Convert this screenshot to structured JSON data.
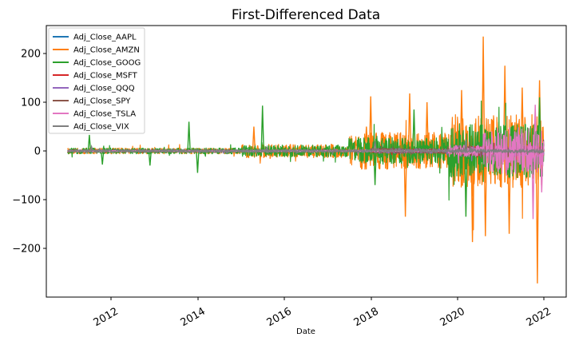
{
  "chart_data": {
    "type": "line",
    "title": "First-Differenced Data",
    "xlabel": "Date",
    "ylabel": "",
    "x_ticks": [
      "2012",
      "2014",
      "2016",
      "2018",
      "2020",
      "2022"
    ],
    "y_ticks": [
      "−200",
      "−100",
      "0",
      "100",
      "200"
    ],
    "x_range": [
      2011.0,
      2022.0
    ],
    "ylim": [
      -300,
      260
    ],
    "grid": false,
    "legend_position": "upper-left",
    "series": [
      {
        "name": "Adj_Close_AAPL",
        "color": "#1f77b4",
        "segments": [
          {
            "from": 2011.0,
            "to": 2018.0,
            "amp": 2
          },
          {
            "from": 2018.0,
            "to": 2020.0,
            "amp": 4
          },
          {
            "from": 2020.0,
            "to": 2022.0,
            "amp": 9
          }
        ]
      },
      {
        "name": "Adj_Close_AMZN",
        "color": "#ff7f0e",
        "segments": [
          {
            "from": 2011.0,
            "to": 2015.0,
            "amp": 6
          },
          {
            "from": 2015.0,
            "to": 2017.5,
            "amp": 14
          },
          {
            "from": 2017.5,
            "to": 2019.8,
            "amp": 38
          },
          {
            "from": 2019.8,
            "to": 2022.0,
            "amp": 75
          }
        ],
        "spikes": [
          {
            "x": 2015.3,
            "y": 50
          },
          {
            "x": 2017.9,
            "y": 50
          },
          {
            "x": 2018.0,
            "y": 112
          },
          {
            "x": 2018.8,
            "y": -135
          },
          {
            "x": 2018.9,
            "y": 118
          },
          {
            "x": 2019.3,
            "y": 100
          },
          {
            "x": 2020.1,
            "y": 125
          },
          {
            "x": 2020.35,
            "y": -187
          },
          {
            "x": 2020.6,
            "y": 235
          },
          {
            "x": 2020.65,
            "y": -175
          },
          {
            "x": 2021.1,
            "y": 175
          },
          {
            "x": 2021.2,
            "y": -170
          },
          {
            "x": 2021.5,
            "y": 130
          },
          {
            "x": 2021.85,
            "y": -272
          },
          {
            "x": 2021.9,
            "y": 145
          }
        ]
      },
      {
        "name": "Adj_Close_GOOG",
        "color": "#2ca02c",
        "segments": [
          {
            "from": 2011.0,
            "to": 2015.0,
            "amp": 6
          },
          {
            "from": 2015.0,
            "to": 2017.5,
            "amp": 12
          },
          {
            "from": 2017.5,
            "to": 2019.8,
            "amp": 28
          },
          {
            "from": 2019.8,
            "to": 2022.0,
            "amp": 55
          }
        ],
        "spikes": [
          {
            "x": 2011.5,
            "y": 33
          },
          {
            "x": 2011.8,
            "y": -28
          },
          {
            "x": 2012.9,
            "y": -30
          },
          {
            "x": 2013.8,
            "y": 60
          },
          {
            "x": 2014.0,
            "y": -45
          },
          {
            "x": 2015.5,
            "y": 93
          },
          {
            "x": 2018.1,
            "y": -70
          },
          {
            "x": 2019.0,
            "y": 85
          },
          {
            "x": 2020.2,
            "y": -135
          },
          {
            "x": 2021.9,
            "y": 110
          }
        ]
      },
      {
        "name": "Adj_Close_MSFT",
        "color": "#d62728",
        "segments": [
          {
            "from": 2011.0,
            "to": 2018.0,
            "amp": 1.5
          },
          {
            "from": 2018.0,
            "to": 2020.0,
            "amp": 4
          },
          {
            "from": 2020.0,
            "to": 2022.0,
            "amp": 10
          }
        ]
      },
      {
        "name": "Adj_Close_QQQ",
        "color": "#9467bd",
        "segments": [
          {
            "from": 2011.0,
            "to": 2018.0,
            "amp": 2
          },
          {
            "from": 2018.0,
            "to": 2020.0,
            "amp": 5
          },
          {
            "from": 2020.0,
            "to": 2022.0,
            "amp": 11
          }
        ]
      },
      {
        "name": "Adj_Close_SPY",
        "color": "#8c564b",
        "segments": [
          {
            "from": 2011.0,
            "to": 2018.0,
            "amp": 2
          },
          {
            "from": 2018.0,
            "to": 2020.0,
            "amp": 5
          },
          {
            "from": 2020.0,
            "to": 2022.0,
            "amp": 11
          }
        ]
      },
      {
        "name": "Adj_Close_TSLA",
        "color": "#e377c2",
        "segments": [
          {
            "from": 2011.0,
            "to": 2019.8,
            "amp": 1.5
          },
          {
            "from": 2019.8,
            "to": 2020.6,
            "amp": 12
          },
          {
            "from": 2020.6,
            "to": 2022.0,
            "amp": 48
          }
        ],
        "spikes": [
          {
            "x": 2021.75,
            "y": -140
          },
          {
            "x": 2021.8,
            "y": 95
          },
          {
            "x": 2021.95,
            "y": -85
          }
        ]
      },
      {
        "name": "Adj_Close_VIX",
        "color": "#7f7f7f",
        "segments": [
          {
            "from": 2011.0,
            "to": 2020.0,
            "amp": 3
          },
          {
            "from": 2020.0,
            "to": 2022.0,
            "amp": 4
          }
        ],
        "spikes": [
          {
            "x": 2011.55,
            "y": 9
          },
          {
            "x": 2015.6,
            "y": 8
          },
          {
            "x": 2018.1,
            "y": 20
          },
          {
            "x": 2020.2,
            "y": 24
          }
        ]
      }
    ]
  }
}
